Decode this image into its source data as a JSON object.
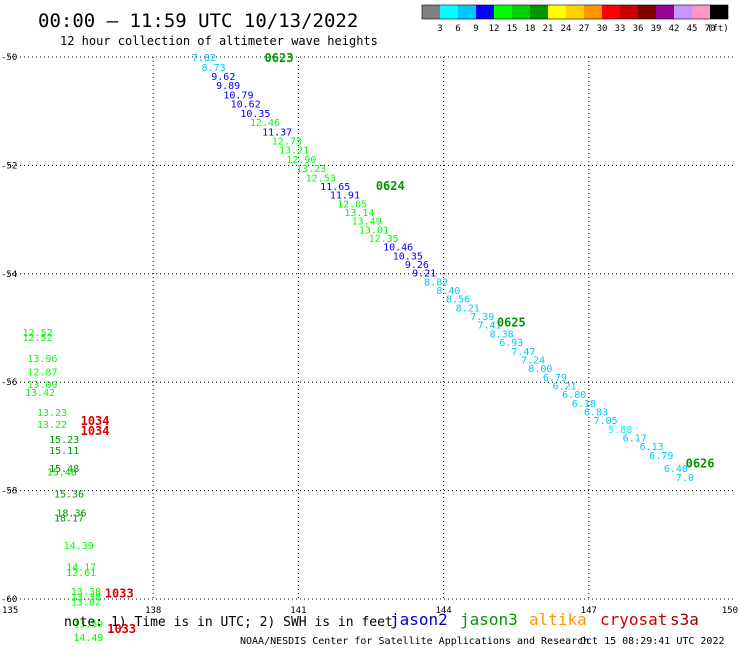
{
  "header": {
    "title": "00:00 – 11:59 UTC 10/13/2022",
    "subtitle": "12 hour collection of altimeter wave heights"
  },
  "colorbar": {
    "labels": [
      "3",
      "6",
      "9",
      "12",
      "15",
      "18",
      "21",
      "24",
      "27",
      "30",
      "33",
      "36",
      "39",
      "42",
      "45",
      "70"
    ],
    "unit": "(ft)",
    "colors": [
      "#808080",
      "#00ffff",
      "#00c8ff",
      "#0000ff",
      "#00ff00",
      "#00d200",
      "#009600",
      "#ffff00",
      "#ffd200",
      "#ff9600",
      "#ff0000",
      "#c80000",
      "#820000",
      "#960096",
      "#c896ff",
      "#ff96c8",
      "#000000"
    ]
  },
  "footer": {
    "note": "note: 1) Time is in UTC; 2) SWH is in feet",
    "credit": "NOAA/NESDIS Center for Satellite Applications and Research",
    "timestamp": "Oct 15 08:29:41 UTC 2022"
  },
  "legend": [
    {
      "name": "jason2",
      "color": "#0000cc"
    },
    {
      "name": "jason3",
      "color": "#009600"
    },
    {
      "name": "altika",
      "color": "#ff9600"
    },
    {
      "name": "cryosat",
      "color": "#cc0000"
    },
    {
      "name": "s3a",
      "color": "#990000"
    }
  ],
  "chart_data": {
    "type": "scatter",
    "title": "00:00 – 11:59 UTC 10/13/2022",
    "subtitle": "12 hour collection of altimeter wave heights",
    "xlabel": "",
    "ylabel": "",
    "xlim": [
      135,
      150
    ],
    "ylim": [
      -60,
      -50
    ],
    "xticks": [
      135,
      138,
      141,
      144,
      147,
      150
    ],
    "yticks": [
      -50,
      -52,
      -54,
      -56,
      -58,
      -60
    ],
    "grid": true,
    "legend_position": "bottom",
    "value_units": "ft",
    "points": [
      {
        "lon": 138.8,
        "lat": -50.0,
        "v": "7.82",
        "c": "#00c8ff"
      },
      {
        "lon": 139.0,
        "lat": -50.18,
        "v": "8.73",
        "c": "#00c8ff"
      },
      {
        "lon": 139.2,
        "lat": -50.35,
        "v": "9.62",
        "c": "#0000ff"
      },
      {
        "lon": 139.3,
        "lat": -50.52,
        "v": "9.89",
        "c": "#0000ff"
      },
      {
        "lon": 139.45,
        "lat": -50.69,
        "v": "10.79",
        "c": "#0000ff"
      },
      {
        "lon": 139.6,
        "lat": -50.86,
        "v": "10.62",
        "c": "#0000ff"
      },
      {
        "lon": 139.8,
        "lat": -51.03,
        "v": "10.35",
        "c": "#0000ff"
      },
      {
        "lon": 140.0,
        "lat": -51.2,
        "v": "12.46",
        "c": "#00ff00"
      },
      {
        "lon": 140.25,
        "lat": -51.37,
        "v": "11.37",
        "c": "#0000ff"
      },
      {
        "lon": 140.45,
        "lat": -51.54,
        "v": "12.73",
        "c": "#00ff00"
      },
      {
        "lon": 140.6,
        "lat": -51.71,
        "v": "13.21",
        "c": "#00ff00"
      },
      {
        "lon": 140.75,
        "lat": -51.88,
        "v": "12.90",
        "c": "#00ff00"
      },
      {
        "lon": 140.95,
        "lat": -52.05,
        "v": "13.23",
        "c": "#00ff00"
      },
      {
        "lon": 141.15,
        "lat": -52.22,
        "v": "12.53",
        "c": "#00ff00"
      },
      {
        "lon": 141.45,
        "lat": -52.38,
        "v": "11.65",
        "c": "#0000ff"
      },
      {
        "lon": 141.65,
        "lat": -52.54,
        "v": "11.91",
        "c": "#0000ff"
      },
      {
        "lon": 141.8,
        "lat": -52.7,
        "v": "12.05",
        "c": "#00ff00"
      },
      {
        "lon": 141.95,
        "lat": -52.86,
        "v": "13.14",
        "c": "#00ff00"
      },
      {
        "lon": 142.1,
        "lat": -53.02,
        "v": "13.49",
        "c": "#00ff00"
      },
      {
        "lon": 142.25,
        "lat": -53.18,
        "v": "13.01",
        "c": "#00ff00"
      },
      {
        "lon": 142.45,
        "lat": -53.34,
        "v": "12.35",
        "c": "#00ff00"
      },
      {
        "lon": 142.75,
        "lat": -53.5,
        "v": "10.46",
        "c": "#0000ff"
      },
      {
        "lon": 142.95,
        "lat": -53.66,
        "v": "10.35",
        "c": "#0000ff"
      },
      {
        "lon": 143.2,
        "lat": -53.82,
        "v": "9.26",
        "c": "#0000ff"
      },
      {
        "lon": 143.35,
        "lat": -53.98,
        "v": "9.21",
        "c": "#0000ff"
      },
      {
        "lon": 143.6,
        "lat": -54.14,
        "v": "8.82",
        "c": "#00c8ff"
      },
      {
        "lon": 143.85,
        "lat": -54.3,
        "v": "8.40",
        "c": "#00c8ff"
      },
      {
        "lon": 144.05,
        "lat": -54.46,
        "v": "8.56",
        "c": "#00c8ff"
      },
      {
        "lon": 144.25,
        "lat": -54.62,
        "v": "8.21",
        "c": "#00c8ff"
      },
      {
        "lon": 144.55,
        "lat": -54.78,
        "v": "7.39",
        "c": "#00c8ff"
      },
      {
        "lon": 144.7,
        "lat": -54.94,
        "v": "7.41",
        "c": "#00c8ff"
      },
      {
        "lon": 144.95,
        "lat": -55.1,
        "v": "8.38",
        "c": "#00c8ff"
      },
      {
        "lon": 145.15,
        "lat": -55.26,
        "v": "6.93",
        "c": "#00c8ff"
      },
      {
        "lon": 145.4,
        "lat": -55.42,
        "v": "7.47",
        "c": "#00c8ff"
      },
      {
        "lon": 145.6,
        "lat": -55.58,
        "v": "7.24",
        "c": "#00c8ff"
      },
      {
        "lon": 145.75,
        "lat": -55.74,
        "v": "8.00",
        "c": "#00c8ff"
      },
      {
        "lon": 146.05,
        "lat": -55.9,
        "v": "6.79",
        "c": "#00c8ff"
      },
      {
        "lon": 146.25,
        "lat": -56.06,
        "v": "6.21",
        "c": "#00c8ff"
      },
      {
        "lon": 146.45,
        "lat": -56.22,
        "v": "6.80",
        "c": "#00c8ff"
      },
      {
        "lon": 146.65,
        "lat": -56.38,
        "v": "6.18",
        "c": "#00c8ff"
      },
      {
        "lon": 146.9,
        "lat": -56.54,
        "v": "6.83",
        "c": "#00c8ff"
      },
      {
        "lon": 147.1,
        "lat": -56.7,
        "v": "7.05",
        "c": "#00c8ff"
      },
      {
        "lon": 147.4,
        "lat": -56.86,
        "v": "5.88",
        "c": "#00ffff"
      },
      {
        "lon": 147.7,
        "lat": -57.02,
        "v": "6.17",
        "c": "#00c8ff"
      },
      {
        "lon": 148.05,
        "lat": -57.18,
        "v": "6.13",
        "c": "#00c8ff"
      },
      {
        "lon": 148.25,
        "lat": -57.34,
        "v": "6.79",
        "c": "#00c8ff"
      },
      {
        "lon": 148.55,
        "lat": -57.58,
        "v": "6.40",
        "c": "#00c8ff"
      },
      {
        "lon": 148.8,
        "lat": -57.75,
        "v": "7.0",
        "c": "#00c8ff"
      },
      {
        "lon": 135.3,
        "lat": -55.07,
        "v": "12.52",
        "c": "#00ff00"
      },
      {
        "lon": 135.3,
        "lat": -55.17,
        "v": "12.52",
        "c": "#00ff00"
      },
      {
        "lon": 135.4,
        "lat": -55.55,
        "v": "13.96",
        "c": "#00ff00"
      },
      {
        "lon": 135.4,
        "lat": -55.8,
        "v": "12.87",
        "c": "#00ff00"
      },
      {
        "lon": 135.4,
        "lat": -56.03,
        "v": "13.09",
        "c": "#00ff00"
      },
      {
        "lon": 135.35,
        "lat": -56.18,
        "v": "13.42",
        "c": "#00ff00"
      },
      {
        "lon": 135.6,
        "lat": -56.55,
        "v": "13.23",
        "c": "#00ff00"
      },
      {
        "lon": 135.6,
        "lat": -56.77,
        "v": "13.22",
        "c": "#00ff00"
      },
      {
        "lon": 135.85,
        "lat": -57.05,
        "v": "15.23",
        "c": "#009600"
      },
      {
        "lon": 135.85,
        "lat": -57.25,
        "v": "15.11",
        "c": "#009600"
      },
      {
        "lon": 135.85,
        "lat": -57.58,
        "v": "15.48",
        "c": "#009600"
      },
      {
        "lon": 135.8,
        "lat": -57.65,
        "v": "15.48",
        "c": "#00d200"
      },
      {
        "lon": 135.95,
        "lat": -58.05,
        "v": "15.36",
        "c": "#009600"
      },
      {
        "lon": 136.0,
        "lat": -58.4,
        "v": "18.36",
        "c": "#009600"
      },
      {
        "lon": 135.95,
        "lat": -58.5,
        "v": "18.17",
        "c": "#009600"
      },
      {
        "lon": 136.15,
        "lat": -59.0,
        "v": "14.39",
        "c": "#00ff00"
      },
      {
        "lon": 136.2,
        "lat": -59.4,
        "v": "14.17",
        "c": "#00ff00"
      },
      {
        "lon": 136.2,
        "lat": -59.5,
        "v": "12.61",
        "c": "#00ff00"
      },
      {
        "lon": 136.3,
        "lat": -59.85,
        "v": "13.38",
        "c": "#00ff00"
      },
      {
        "lon": 136.3,
        "lat": -59.95,
        "v": "13.38",
        "c": "#00ff00"
      },
      {
        "lon": 136.3,
        "lat": -60.05,
        "v": "13.02",
        "c": "#00ff00"
      },
      {
        "lon": 136.35,
        "lat": -60.45,
        "v": "13.59",
        "c": "#00ff00"
      },
      {
        "lon": 136.35,
        "lat": -60.7,
        "v": "14.49",
        "c": "#00ff00"
      }
    ],
    "times": [
      {
        "lon": 140.3,
        "lat": -50.02,
        "v": "0623",
        "c": "#009600"
      },
      {
        "lon": 142.6,
        "lat": -52.38,
        "v": "0624",
        "c": "#009600"
      },
      {
        "lon": 145.1,
        "lat": -54.9,
        "v": "0625",
        "c": "#009600"
      },
      {
        "lon": 149.0,
        "lat": -57.5,
        "v": "0626",
        "c": "#009600"
      },
      {
        "lon": 136.5,
        "lat": -56.72,
        "v": "1034",
        "c": "#dd0000"
      },
      {
        "lon": 136.5,
        "lat": -56.9,
        "v": "1034",
        "c": "#dd0000"
      },
      {
        "lon": 137.0,
        "lat": -59.9,
        "v": "1033",
        "c": "#dd0000"
      },
      {
        "lon": 137.05,
        "lat": -60.55,
        "v": "1033",
        "c": "#dd0000"
      }
    ]
  }
}
